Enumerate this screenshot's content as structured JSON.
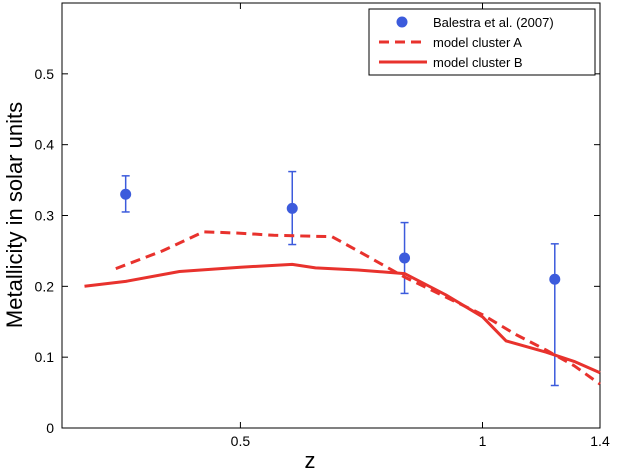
{
  "chart_data": {
    "type": "scatter",
    "xlabel": "z",
    "ylabel": "Metallicity in solar units",
    "xlim": [
      0.3,
      1.4
    ],
    "ylim": [
      0,
      0.6
    ],
    "x_ticks": [
      {
        "value": 0.5,
        "label": "0.5"
      },
      {
        "value": 1.0,
        "label": "1"
      },
      {
        "value": 1.4,
        "label": "1.4"
      }
    ],
    "y_ticks": [
      {
        "value": 0,
        "label": "0"
      },
      {
        "value": 0.1,
        "label": "0.1"
      },
      {
        "value": 0.2,
        "label": "0.2"
      },
      {
        "value": 0.3,
        "label": "0.3"
      },
      {
        "value": 0.4,
        "label": "0.4"
      },
      {
        "value": 0.5,
        "label": "0.5"
      }
    ],
    "legend_position": "top-right",
    "colors": {
      "points": "#3c5bdc",
      "lines": "#e8322d"
    },
    "series": [
      {
        "name": "Balestra et al. (2007)",
        "kind": "points",
        "points": [
          {
            "x": 0.36,
            "y": 0.33,
            "err_lo": 0.305,
            "err_hi": 0.356
          },
          {
            "x": 0.58,
            "y": 0.31,
            "err_lo": 0.259,
            "err_hi": 0.362
          },
          {
            "x": 0.8,
            "y": 0.24,
            "err_lo": 0.19,
            "err_hi": 0.29
          },
          {
            "x": 1.23,
            "y": 0.21,
            "err_lo": 0.06,
            "err_hi": 0.26
          }
        ]
      },
      {
        "name": "model cluster A",
        "kind": "dashed",
        "points": [
          {
            "x": 0.35,
            "y": 0.225
          },
          {
            "x": 0.4,
            "y": 0.25
          },
          {
            "x": 0.45,
            "y": 0.277
          },
          {
            "x": 0.5,
            "y": 0.275
          },
          {
            "x": 0.55,
            "y": 0.272
          },
          {
            "x": 0.65,
            "y": 0.27
          },
          {
            "x": 0.7,
            "y": 0.25
          },
          {
            "x": 0.8,
            "y": 0.213
          },
          {
            "x": 0.9,
            "y": 0.185
          },
          {
            "x": 1.0,
            "y": 0.16
          },
          {
            "x": 1.1,
            "y": 0.132
          },
          {
            "x": 1.2,
            "y": 0.11
          },
          {
            "x": 1.3,
            "y": 0.088
          },
          {
            "x": 1.4,
            "y": 0.062
          }
        ]
      },
      {
        "name": "model cluster B",
        "kind": "solid",
        "points": [
          {
            "x": 0.32,
            "y": 0.2
          },
          {
            "x": 0.36,
            "y": 0.207
          },
          {
            "x": 0.42,
            "y": 0.221
          },
          {
            "x": 0.5,
            "y": 0.227
          },
          {
            "x": 0.58,
            "y": 0.231
          },
          {
            "x": 0.62,
            "y": 0.226
          },
          {
            "x": 0.7,
            "y": 0.223
          },
          {
            "x": 0.8,
            "y": 0.218
          },
          {
            "x": 0.9,
            "y": 0.188
          },
          {
            "x": 1.0,
            "y": 0.157
          },
          {
            "x": 1.07,
            "y": 0.123
          },
          {
            "x": 1.2,
            "y": 0.107
          },
          {
            "x": 1.3,
            "y": 0.094
          },
          {
            "x": 1.4,
            "y": 0.078
          }
        ]
      }
    ]
  }
}
